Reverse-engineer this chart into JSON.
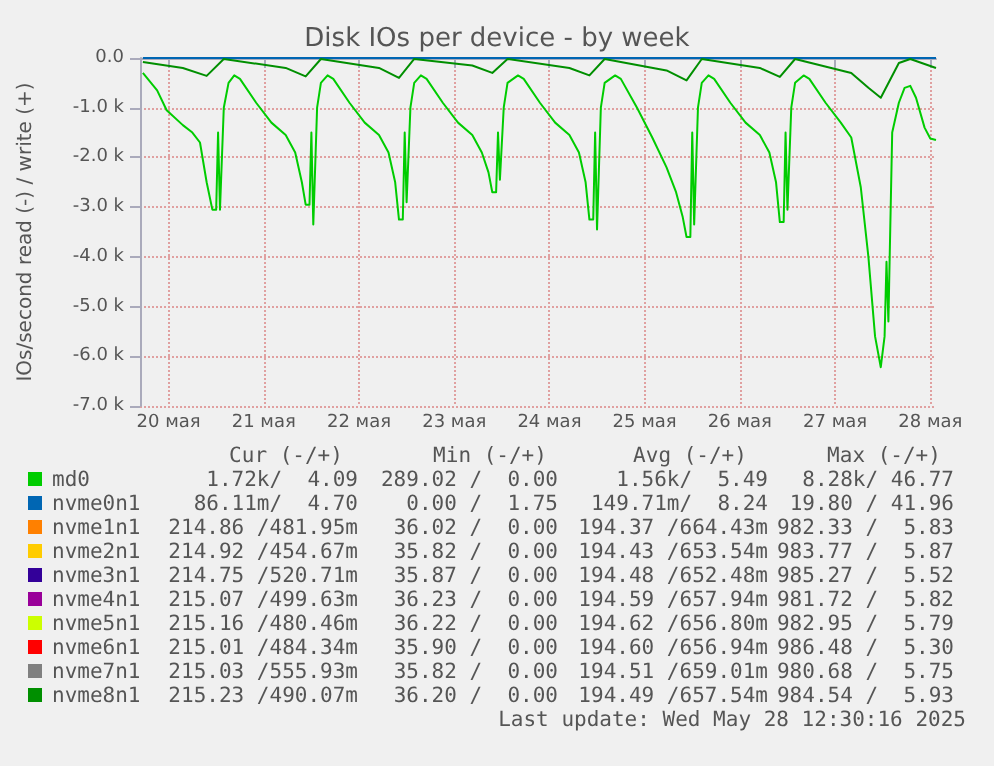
{
  "chart_data": {
    "type": "line",
    "title": "Disk IOs per device - by week",
    "ylabel": "IOs/second read (-) / write (+)",
    "xlim": [
      19.7,
      28.06
    ],
    "xticks": [
      {
        "value": 20,
        "label": "20 мая"
      },
      {
        "value": 21,
        "label": "21 мая"
      },
      {
        "value": 22,
        "label": "22 мая"
      },
      {
        "value": 23,
        "label": "23 мая"
      },
      {
        "value": 24,
        "label": "24 мая"
      },
      {
        "value": 25,
        "label": "25 мая"
      },
      {
        "value": 26,
        "label": "26 мая"
      },
      {
        "value": 27,
        "label": "27 мая"
      },
      {
        "value": 28,
        "label": "28 мая"
      }
    ],
    "ylim": [
      -7000,
      0
    ],
    "yticks": [
      {
        "value": -7000,
        "label": "-7.0 k"
      },
      {
        "value": -6000,
        "label": "-6.0 k"
      },
      {
        "value": -5000,
        "label": "-5.0 k"
      },
      {
        "value": -4000,
        "label": "-4.0 k"
      },
      {
        "value": -3000,
        "label": "-3.0 k"
      },
      {
        "value": -2000,
        "label": "-2.0 k"
      },
      {
        "value": -1000,
        "label": "-1.0 k"
      },
      {
        "value": 0,
        "label": "0.0"
      }
    ],
    "grid": true,
    "legend": "bottom",
    "series": [
      {
        "name": "md0",
        "color": "#00cc00",
        "x": [
          19.73,
          19.88,
          19.98,
          20.15,
          20.25,
          20.33,
          20.4,
          20.46,
          20.5,
          20.52,
          20.54,
          20.58,
          20.63,
          20.69,
          20.75,
          20.92,
          21.08,
          21.23,
          21.33,
          21.4,
          21.44,
          21.48,
          21.5,
          21.52,
          21.56,
          21.6,
          21.67,
          21.73,
          21.9,
          22.06,
          22.21,
          22.31,
          22.38,
          22.42,
          22.46,
          22.48,
          22.5,
          22.54,
          22.58,
          22.65,
          22.71,
          22.88,
          23.04,
          23.19,
          23.29,
          23.36,
          23.4,
          23.44,
          23.46,
          23.48,
          23.52,
          23.56,
          23.67,
          23.73,
          23.9,
          24.06,
          24.21,
          24.31,
          24.38,
          24.42,
          24.46,
          24.48,
          24.5,
          24.54,
          24.58,
          24.69,
          24.75,
          24.92,
          25.08,
          25.23,
          25.33,
          25.4,
          25.44,
          25.48,
          25.5,
          25.52,
          25.56,
          25.6,
          25.67,
          25.73,
          25.9,
          26.06,
          26.21,
          26.31,
          26.38,
          26.42,
          26.46,
          26.48,
          26.5,
          26.54,
          26.58,
          26.67,
          26.73,
          26.9,
          27.06,
          27.17,
          27.27,
          27.35,
          27.42,
          27.48,
          27.52,
          27.54,
          27.56,
          27.6,
          27.67,
          27.73,
          27.79,
          27.85,
          27.94,
          28.0,
          28.06
        ],
        "values": [
          -300,
          -650,
          -1050,
          -1350,
          -1500,
          -1700,
          -2500,
          -3050,
          -3050,
          -1500,
          -3050,
          -1000,
          -500,
          -350,
          -420,
          -900,
          -1300,
          -1550,
          -1900,
          -2500,
          -2950,
          -2950,
          -1500,
          -3350,
          -1000,
          -500,
          -350,
          -420,
          -900,
          -1300,
          -1550,
          -1900,
          -2500,
          -3250,
          -3250,
          -1500,
          -2900,
          -1000,
          -500,
          -350,
          -420,
          -900,
          -1300,
          -1550,
          -1900,
          -2300,
          -2700,
          -2700,
          -1500,
          -2450,
          -1000,
          -500,
          -350,
          -420,
          -900,
          -1300,
          -1550,
          -1900,
          -2500,
          -3250,
          -3250,
          -1500,
          -3450,
          -1000,
          -500,
          -350,
          -420,
          -1000,
          -1600,
          -2200,
          -2700,
          -3200,
          -3600,
          -3600,
          -1500,
          -3350,
          -1000,
          -500,
          -350,
          -420,
          -900,
          -1300,
          -1550,
          -1900,
          -2500,
          -3300,
          -3300,
          -1500,
          -3050,
          -1000,
          -500,
          -350,
          -420,
          -900,
          -1300,
          -1600,
          -2600,
          -4000,
          -5600,
          -6220,
          -5600,
          -4100,
          -5300,
          -1500,
          -900,
          -600,
          -560,
          -800,
          -1400,
          -1620,
          -1650
        ]
      },
      {
        "name": "nvme0n1",
        "color": "#0066b3",
        "x": [
          19.73,
          28.06
        ],
        "values": [
          0,
          0
        ]
      },
      {
        "name": "nvme1n1",
        "color": "#ff8000"
      },
      {
        "name": "nvme2n1",
        "color": "#ffcc00"
      },
      {
        "name": "nvme3n1",
        "color": "#330099"
      },
      {
        "name": "nvme4n1",
        "color": "#990099"
      },
      {
        "name": "nvme5n1",
        "color": "#ccff00"
      },
      {
        "name": "nvme6n1",
        "color": "#ff0000"
      },
      {
        "name": "nvme7n1",
        "color": "#808080"
      },
      {
        "name": "nvme8n1",
        "color": "#008f00",
        "x": [
          19.73,
          20.15,
          20.4,
          20.58,
          21.23,
          21.44,
          21.6,
          22.21,
          22.42,
          22.58,
          23.19,
          23.4,
          23.56,
          24.21,
          24.42,
          24.58,
          25.23,
          25.44,
          25.6,
          26.21,
          26.42,
          26.58,
          27.17,
          27.35,
          27.48,
          27.67,
          27.79,
          28.06
        ],
        "values": [
          -80,
          -200,
          -360,
          -20,
          -200,
          -370,
          -20,
          -200,
          -400,
          -20,
          -150,
          -300,
          -20,
          -200,
          -350,
          -20,
          -250,
          -450,
          -20,
          -200,
          -380,
          -20,
          -300,
          -600,
          -800,
          -100,
          -20,
          -200
        ]
      }
    ],
    "annotations": [
      "Cur (-/+)",
      "Min (-/+)",
      "Avg (-/+)",
      "Max (-/+)",
      "1.72k/  4.09",
      "289.02 /  0.00",
      "1.56k/  5.49",
      "8.28k/ 46.77",
      "86.11m/  4.70",
      "0.00 /  1.75",
      "149.71m/  8.24",
      "19.80 / 41.96",
      "214.86 /481.95m",
      "36.02 /  0.00",
      "194.37 /664.43m",
      "982.33 /  5.83",
      "214.92 /454.67m",
      "35.82 /  0.00",
      "194.43 /653.54m",
      "983.77 /  5.87",
      "214.75 /520.71m",
      "35.87 /  0.00",
      "194.48 /652.48m",
      "985.27 /  5.52",
      "215.07 /499.63m",
      "36.23 /  0.00",
      "194.59 /657.94m",
      "981.72 /  5.82",
      "215.16 /480.46m",
      "36.22 /  0.00",
      "194.62 /656.80m",
      "982.95 /  5.79",
      "215.01 /484.34m",
      "35.90 /  0.00",
      "194.60 /656.94m",
      "986.48 /  5.30",
      "215.03 /555.93m",
      "35.82 /  0.00",
      "194.51 /659.01m",
      "980.68 /  5.75",
      "215.23 /490.07m",
      "36.20 /  0.00",
      "194.49 /657.54m",
      "984.54 /  5.93",
      "Last update: Wed May 28 12:30:16 2025"
    ]
  }
}
